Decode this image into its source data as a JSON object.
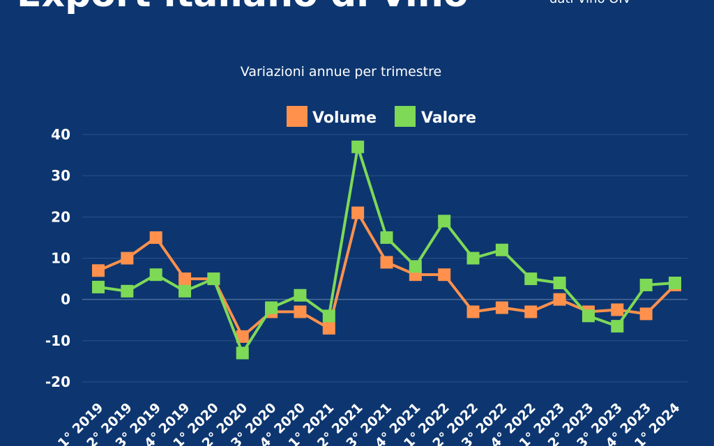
{
  "header": {
    "title": "Export italiano di vino",
    "source": "dati Vino OIV"
  },
  "chart_data": {
    "type": "line",
    "title": "",
    "subtitle": "Variazioni annue per trimestre",
    "xlabel": "",
    "ylabel": "",
    "categories": [
      "1° 2019",
      "2° 2019",
      "3° 2019",
      "4° 2019",
      "1° 2020",
      "2° 2020",
      "3° 2020",
      "4° 2020",
      "1° 2021",
      "2° 2021",
      "3° 2021",
      "4° 2021",
      "1° 2022",
      "2° 2022",
      "3° 2022",
      "4° 2022",
      "1° 2023",
      "2° 2023",
      "3° 2023",
      "4° 2023",
      "1° 2024"
    ],
    "y_ticks": [
      40,
      30,
      20,
      10,
      0,
      -10,
      -20
    ],
    "ylim": [
      -20,
      40
    ],
    "grid": true,
    "legend_position": "top-center",
    "series": [
      {
        "name": "Volume",
        "color": "#ff914d",
        "values": [
          7,
          10,
          15,
          5,
          5,
          -9,
          -3,
          -3,
          -7,
          21,
          9,
          6,
          6,
          -3,
          -2,
          -3,
          0,
          -3,
          -2.5,
          -3.5,
          3.5
        ]
      },
      {
        "name": "Valore",
        "color": "#7ed957",
        "values": [
          3,
          2,
          6,
          2,
          5,
          -13,
          -2,
          1,
          -4,
          37,
          15,
          8,
          19,
          10,
          12,
          5,
          4,
          -4,
          -6.5,
          3.5,
          4
        ]
      }
    ]
  }
}
